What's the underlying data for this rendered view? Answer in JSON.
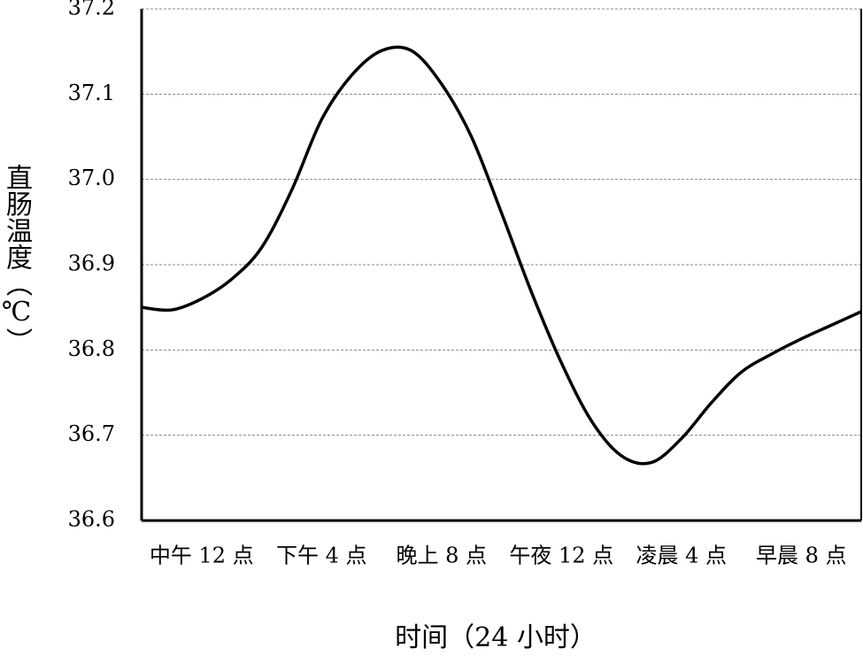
{
  "chart_data": {
    "type": "line",
    "x_label": "时间（24 小时）",
    "y_label": "直肠温度（℃）",
    "x": [
      0,
      1,
      2,
      3,
      4,
      5,
      6,
      7,
      8,
      9,
      10,
      11,
      12,
      13,
      14,
      15,
      16,
      17,
      18,
      19,
      20,
      21,
      22,
      23,
      24
    ],
    "series": [
      {
        "color": "#000000",
        "values": [
          36.85,
          36.847,
          36.86,
          36.883,
          36.92,
          36.987,
          37.07,
          37.122,
          37.151,
          37.151,
          37.112,
          37.05,
          36.961,
          36.868,
          36.785,
          36.717,
          36.676,
          36.668,
          36.696,
          36.738,
          36.774,
          36.795,
          36.813,
          36.829,
          36.845
        ]
      }
    ],
    "xlim": [
      0,
      24
    ],
    "xticks": [
      {
        "value": 2,
        "label": "中午 12 点"
      },
      {
        "value": 6,
        "label": "下午 4 点"
      },
      {
        "value": 10,
        "label": "晚上 8 点"
      },
      {
        "value": 14,
        "label": "午夜 12 点"
      },
      {
        "value": 18,
        "label": "凌晨 4 点"
      },
      {
        "value": 22,
        "label": "早晨 8 点"
      }
    ],
    "ylim": [
      36.6,
      37.2
    ],
    "yticks": [
      36.6,
      36.7,
      36.8,
      36.9,
      {
        "value": 37,
        "label": "37.0"
      },
      37.1,
      37.2
    ],
    "grid": true
  }
}
